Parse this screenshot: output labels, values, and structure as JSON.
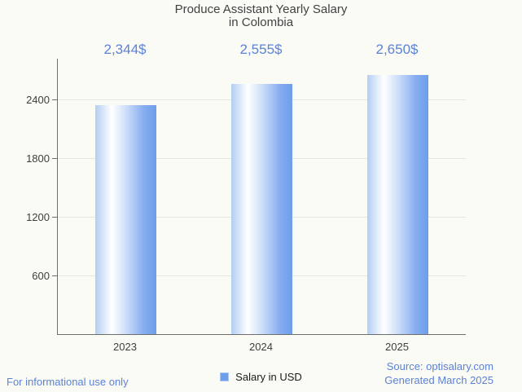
{
  "title": {
    "line1": "Produce Assistant Yearly Salary",
    "line2": "in Colombia"
  },
  "chart_data": {
    "type": "bar",
    "title": "Produce Assistant Yearly Salary in Colombia",
    "categories": [
      "2023",
      "2024",
      "2025"
    ],
    "series": [
      {
        "name": "Salary in USD",
        "values": [
          2344,
          2555,
          2650
        ]
      }
    ],
    "annotations": [
      "2,344$",
      "2,555$",
      "2,650$"
    ],
    "xlabel": "",
    "ylabel": "",
    "ylim": [
      0,
      2816
    ],
    "yticks": [
      600,
      1200,
      1800,
      2400
    ],
    "grid": true,
    "legend_position": "bottom",
    "bar_color": "#6d9eeb",
    "bar_gradient": [
      "#b3cef2",
      "#ffffff",
      "#6d9eeb"
    ]
  },
  "legend": {
    "label": "Salary in USD",
    "marker_color": "#6d9eeb"
  },
  "footer": {
    "left": "For informational use only",
    "right_line1": "Source: optisalary.com",
    "right_line2": "Generated March 2025"
  },
  "colors": {
    "accent_blue": "#5b82d6",
    "title_text": "#424242",
    "axis_text": "#3d3d3d",
    "axis_line": "#6e6e6e",
    "gridline": "#e4e4e1",
    "background": "#fbfbf6"
  }
}
